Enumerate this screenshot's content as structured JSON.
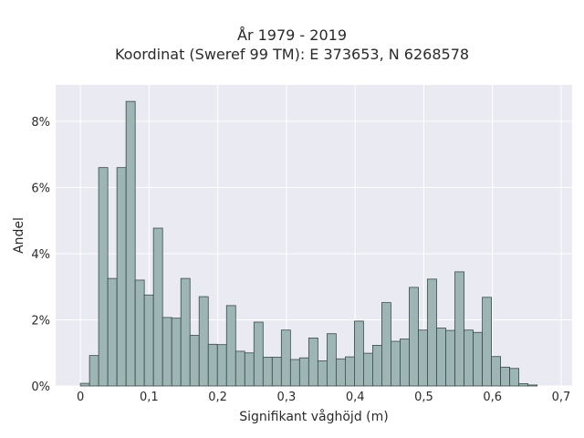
{
  "chart_data": {
    "type": "bar",
    "title_lines": [
      "År 1979 - 2019",
      "Koordinat (Sweref 99 TM): E 373653, N 6268578"
    ],
    "xlabel": "Signifikant våghöjd (m)",
    "ylabel": "Andel",
    "xlim": [
      -0.036,
      0.716
    ],
    "ylim": [
      0,
      9.1
    ],
    "x_ticks": [
      0,
      0.1,
      0.2,
      0.3,
      0.4,
      0.5,
      0.6,
      0.7
    ],
    "x_tick_labels": [
      "0",
      "0,1",
      "0,2",
      "0,3",
      "0,4",
      "0,5",
      "0,6",
      "0,7"
    ],
    "y_ticks": [
      0,
      2,
      4,
      6,
      8
    ],
    "y_tick_labels": [
      "0%",
      "2%",
      "4%",
      "6%",
      "8%"
    ],
    "bin_start": 0,
    "bin_width": 0.0133,
    "values": [
      0.08,
      0.92,
      6.6,
      3.25,
      6.6,
      8.6,
      3.2,
      2.75,
      4.77,
      2.07,
      2.05,
      3.25,
      1.53,
      2.7,
      1.26,
      1.25,
      2.43,
      1.05,
      1.0,
      1.93,
      0.87,
      0.87,
      1.69,
      0.8,
      0.85,
      1.45,
      0.76,
      1.58,
      0.82,
      0.88,
      1.96,
      0.99,
      1.23,
      2.52,
      1.35,
      1.42,
      2.98,
      1.69,
      3.23,
      1.75,
      1.68,
      3.45,
      1.69,
      1.62,
      2.68,
      0.89,
      0.57,
      0.53,
      0.07,
      0.03
    ],
    "grid": true,
    "colors": {
      "bar_fill": "#9db5b5",
      "bar_edge": "#3a4a4a",
      "plot_bg": "#eaeaf2",
      "grid": "#ffffff"
    }
  }
}
